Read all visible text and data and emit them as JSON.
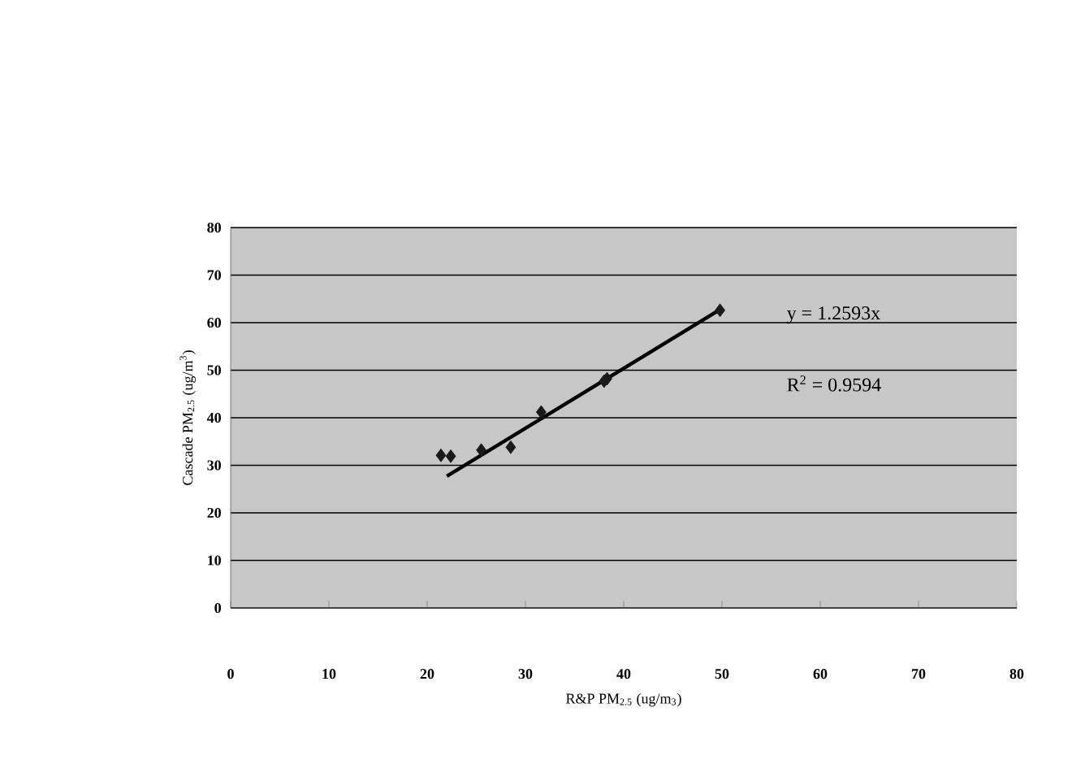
{
  "chart_data": {
    "type": "scatter",
    "xlabel": "R&P PM$_{2.5}$ (ug/m$_{3}$)",
    "ylabel": "Cascade PM$_{2.5}$ (ug/m$^{3}$)",
    "xlim": [
      0,
      80
    ],
    "ylim": [
      0,
      80
    ],
    "xticks": [
      0,
      10,
      20,
      30,
      40,
      50,
      60,
      70,
      80
    ],
    "yticks": [
      0,
      10,
      20,
      30,
      40,
      50,
      60,
      70,
      80
    ],
    "grid": "y",
    "marker": "diamond",
    "series": [
      {
        "color": "#1a1a1a",
        "x": [
          21.4,
          22.4,
          25.5,
          28.5,
          31.6,
          38.0,
          38.3,
          49.8
        ],
        "values": [
          32.1,
          31.9,
          33.2,
          33.8,
          41.2,
          47.7,
          48.2,
          62.6
        ]
      },
      {
        "type": "line",
        "color": "#000000",
        "marker": "none",
        "x": [
          22,
          50
        ],
        "values": [
          27.7,
          63.0
        ]
      }
    ],
    "annotations": [
      "y = 1.2593x",
      "R$^{2}$ = 0.9594"
    ]
  }
}
